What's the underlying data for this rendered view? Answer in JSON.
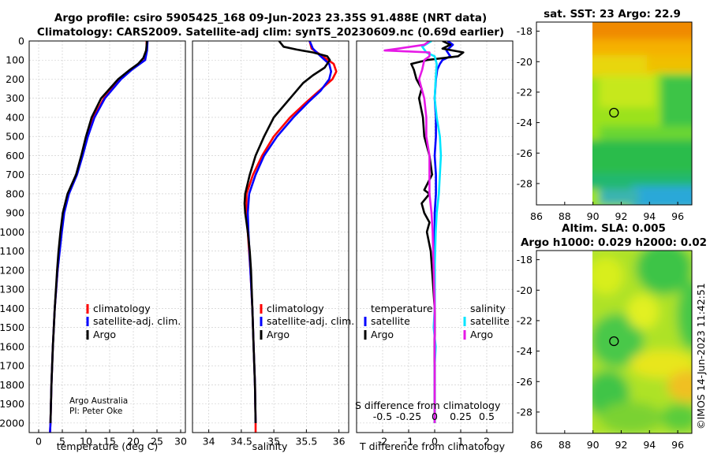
{
  "title_line1": "Argo profile: csiro 5905425_168 09-Jun-2023 23.35S 91.488E (NRT data)",
  "title_line2": "Climatology: CARS2009. Satellite-adj clim: synTS_20230609.nc (0.69d earlier)",
  "sst_title": "sat. SST: 23 Argo: 22.9",
  "sla_title1": "Altim. SLA: 0.005",
  "sla_title2": "Argo h1000: 0.029 h2000: 0.02",
  "timestamp": "©IMOS 14-Jun-2023 11:42:51",
  "credit_line1": "Argo Australia",
  "credit_line2": "PI: Peter Oke",
  "colors": {
    "climatology": "#ff0000",
    "satellite": "#0000ff",
    "argo": "#000000",
    "sat_salinity": "#00e5ff",
    "argo_salinity": "#e619e6"
  },
  "chart_data": [
    {
      "type": "line",
      "id": "temperature",
      "xlabel": "temperature (deg C)",
      "ylabel": "",
      "xlim": [
        -2,
        31
      ],
      "ylim": [
        2050,
        0
      ],
      "xticks": [
        "0",
        "5",
        "10",
        "15",
        "20",
        "25",
        "30"
      ],
      "yticks": [
        "0",
        "100",
        "200",
        "300",
        "400",
        "500",
        "600",
        "700",
        "800",
        "900",
        "1000",
        "1100",
        "1200",
        "1300",
        "1400",
        "1500",
        "1600",
        "1700",
        "1800",
        "1900",
        "2000"
      ],
      "legend": [
        "climatology",
        "satellite-adj. clim.",
        "Argo"
      ],
      "series": [
        {
          "name": "climatology",
          "color": "#ff0000",
          "depth": [
            0,
            50,
            100,
            150,
            200,
            300,
            400,
            500,
            600,
            700,
            800,
            900,
            1000,
            1200,
            1400,
            1600,
            1800,
            2000,
            2050
          ],
          "values": [
            22.8,
            22.8,
            22.4,
            19.5,
            17.2,
            13.8,
            11.6,
            10.3,
            9.2,
            8.0,
            6.3,
            5.3,
            4.8,
            4.0,
            3.4,
            3.0,
            2.7,
            2.5,
            2.4
          ]
        },
        {
          "name": "satellite-adj. clim.",
          "color": "#0000ff",
          "depth": [
            0,
            50,
            100,
            150,
            200,
            300,
            400,
            500,
            600,
            700,
            800,
            900,
            1000,
            1200,
            1400,
            1600,
            1800,
            2000,
            2050
          ],
          "values": [
            23.0,
            22.9,
            22.5,
            19.7,
            17.4,
            14.0,
            11.8,
            10.4,
            9.3,
            8.1,
            6.4,
            5.4,
            4.9,
            4.0,
            3.4,
            3.0,
            2.7,
            2.5,
            2.4
          ]
        },
        {
          "name": "Argo",
          "color": "#000000",
          "depth": [
            0,
            50,
            90,
            120,
            150,
            200,
            300,
            400,
            500,
            600,
            700,
            800,
            850,
            900,
            1000,
            1100,
            1200,
            1400,
            1600,
            1800,
            2000
          ],
          "values": [
            22.9,
            22.7,
            22.1,
            21.0,
            19.3,
            16.8,
            13.2,
            11.2,
            10.0,
            9.0,
            7.9,
            6.1,
            5.6,
            5.1,
            4.6,
            4.2,
            3.9,
            3.4,
            3.0,
            2.7,
            2.5
          ]
        }
      ]
    },
    {
      "type": "line",
      "id": "salinity",
      "xlabel": "salinity",
      "ylabel": "",
      "xlim": [
        33.75,
        36.15
      ],
      "ylim": [
        2050,
        0
      ],
      "xticks": [
        "34",
        "34.5",
        "35",
        "35.5",
        "36"
      ],
      "legend": [
        "climatology",
        "satellite-adj. clim.",
        "Argo"
      ],
      "series": [
        {
          "name": "climatology",
          "color": "#ff0000",
          "depth": [
            0,
            40,
            80,
            120,
            160,
            200,
            260,
            320,
            400,
            500,
            600,
            700,
            800,
            900,
            1000,
            1200,
            1400,
            1600,
            1800,
            2000,
            2050
          ],
          "values": [
            35.55,
            35.58,
            35.75,
            35.92,
            35.96,
            35.9,
            35.7,
            35.5,
            35.25,
            35.0,
            34.82,
            34.68,
            34.58,
            34.58,
            34.6,
            34.64,
            34.67,
            34.69,
            34.71,
            34.72,
            34.72
          ]
        },
        {
          "name": "satellite-adj. clim.",
          "color": "#0000ff",
          "depth": [
            0,
            40,
            80,
            120,
            160,
            200,
            260,
            320,
            400,
            500,
            600,
            700,
            800,
            900,
            1000,
            1200,
            1400,
            1600,
            1800,
            2000
          ],
          "values": [
            35.55,
            35.6,
            35.72,
            35.85,
            35.88,
            35.85,
            35.72,
            35.53,
            35.3,
            35.05,
            34.85,
            34.72,
            34.62,
            34.6,
            34.61,
            34.64,
            34.67,
            34.69,
            34.71,
            34.72
          ]
        },
        {
          "name": "Argo",
          "color": "#000000",
          "depth": [
            0,
            30,
            45,
            60,
            80,
            100,
            140,
            180,
            220,
            300,
            400,
            500,
            600,
            700,
            800,
            850,
            900,
            950,
            1000,
            1100,
            1200,
            1400,
            1600,
            1800,
            2000
          ],
          "values": [
            35.08,
            35.15,
            35.35,
            35.6,
            35.82,
            35.86,
            35.78,
            35.6,
            35.45,
            35.25,
            35.0,
            34.85,
            34.72,
            34.63,
            34.56,
            34.55,
            34.56,
            34.58,
            34.6,
            34.63,
            34.65,
            34.67,
            34.69,
            34.71,
            34.72
          ]
        }
      ]
    },
    {
      "type": "line",
      "id": "difference",
      "xlabel": "T difference from climatology",
      "xlabel_top": "S difference from climatology",
      "xlim": [
        -3,
        3
      ],
      "ylim": [
        2050,
        0
      ],
      "xticks": [
        "-2",
        "-1",
        "0",
        "1",
        "2"
      ],
      "top_xticks": [
        "-0.5",
        "-0.25",
        "0",
        "0.25",
        "0.5"
      ],
      "legend_headers": [
        "temperature",
        "salinity"
      ],
      "legend": [
        "satellite",
        "Argo",
        "satellite",
        "Argo"
      ],
      "series": [
        {
          "name": "temperature satellite",
          "color": "#0000ff",
          "depth": [
            0,
            20,
            50,
            80,
            100,
            120,
            150,
            200,
            300,
            400,
            500,
            600,
            700,
            800,
            900,
            1000,
            1200,
            1400,
            1600,
            1800,
            2000
          ],
          "values": [
            0.5,
            0.7,
            0.45,
            0.6,
            0.3,
            0.2,
            0.1,
            0.05,
            0.0,
            0.05,
            0.05,
            0.0,
            0.05,
            0.05,
            0.0,
            0.0,
            0.0,
            0.0,
            0.0,
            0.0,
            0.0
          ]
        },
        {
          "name": "temperature Argo",
          "color": "#000000",
          "depth": [
            0,
            20,
            40,
            60,
            80,
            100,
            120,
            150,
            200,
            250,
            300,
            400,
            500,
            600,
            700,
            780,
            800,
            850,
            900,
            950,
            1000,
            1100,
            1200,
            1400,
            1600,
            1800,
            2000
          ],
          "values": [
            0.3,
            0.6,
            0.3,
            1.1,
            0.9,
            -0.3,
            -0.9,
            -0.8,
            -0.7,
            -0.5,
            -0.6,
            -0.45,
            -0.4,
            -0.2,
            -0.1,
            -0.4,
            -0.2,
            -0.5,
            -0.4,
            -0.2,
            -0.3,
            -0.15,
            -0.1,
            0.0,
            0.0,
            0.0,
            0.0
          ]
        },
        {
          "name": "salinity satellite",
          "color": "#00e5ff",
          "depth": [
            0,
            30,
            60,
            80,
            120,
            200,
            300,
            400,
            500,
            600,
            700,
            800,
            900,
            1000,
            1200,
            1400,
            1500,
            1600,
            1700,
            1800,
            2000
          ],
          "values": [
            -0.03,
            -0.12,
            -0.08,
            0.0,
            0.02,
            0.01,
            0.0,
            0.02,
            0.05,
            0.06,
            0.05,
            0.04,
            0.02,
            0.01,
            0.0,
            0.0,
            -0.01,
            0.01,
            0.0,
            0.0,
            0.0
          ]
        },
        {
          "name": "salinity Argo",
          "color": "#e619e6",
          "depth": [
            0,
            20,
            40,
            50,
            55,
            60,
            80,
            100,
            150,
            200,
            300,
            400,
            500,
            600,
            700,
            800,
            900,
            1000,
            1200,
            1400,
            1600,
            1800,
            2000
          ],
          "values": [
            -0.05,
            -0.1,
            -0.35,
            -0.48,
            -0.25,
            -0.05,
            -0.05,
            -0.1,
            -0.12,
            -0.15,
            -0.1,
            -0.08,
            -0.08,
            -0.05,
            -0.05,
            -0.05,
            -0.03,
            -0.02,
            -0.01,
            0.0,
            0.0,
            0.0,
            0.0
          ]
        }
      ]
    },
    {
      "type": "heatmap",
      "id": "sst_map",
      "title": "sat. SST: 23 Argo: 22.9",
      "xlim": [
        86,
        97
      ],
      "ylim": [
        -29.4,
        -17.4
      ],
      "xticks": [
        "86",
        "88",
        "90",
        "92",
        "94",
        "96"
      ],
      "yticks": [
        "-18",
        "-20",
        "-22",
        "-24",
        "-26",
        "-28"
      ],
      "marker": {
        "lon": 91.488,
        "lat": -23.35
      }
    },
    {
      "type": "heatmap",
      "id": "sla_map",
      "title": "Altim. SLA: 0.005",
      "xlim": [
        86,
        97
      ],
      "ylim": [
        -29.4,
        -17.4
      ],
      "xticks": [
        "86",
        "88",
        "90",
        "92",
        "94",
        "96"
      ],
      "yticks": [
        "-18",
        "-20",
        "-22",
        "-24",
        "-26",
        "-28"
      ],
      "marker": {
        "lon": 91.488,
        "lat": -23.35
      }
    }
  ]
}
